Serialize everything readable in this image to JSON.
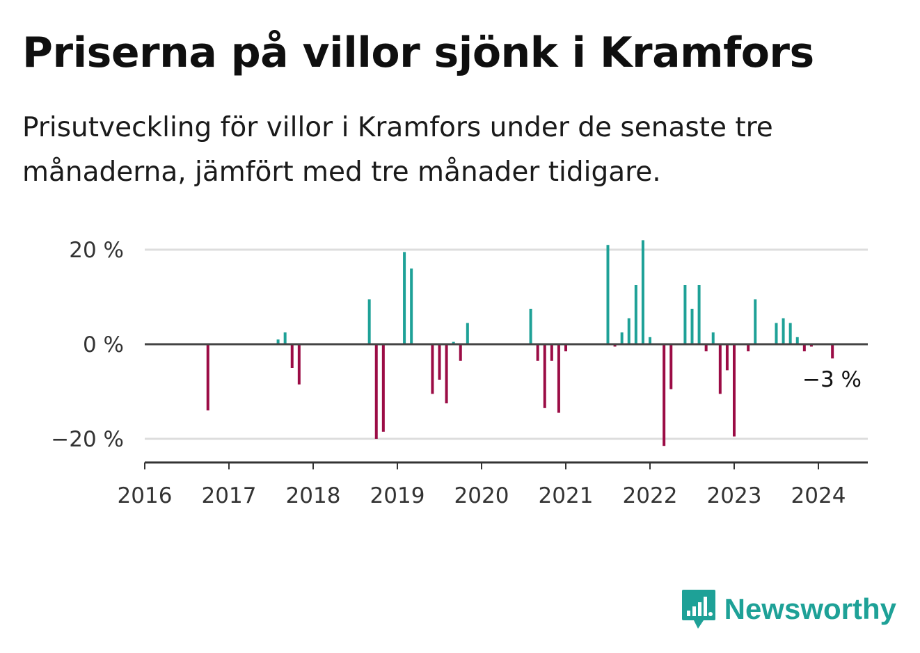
{
  "title": "Priserna på villor sjönk i Kramfors",
  "subtitle": "Prisutveckling för villor i Kramfors under de senaste tre månaderna, jämfört med tre månader tidigare.",
  "brand": {
    "name": "Newsworthy",
    "icon": "bar-chart-speech-bubble-icon",
    "color": "#1ea197"
  },
  "colors": {
    "positive": "#1ea197",
    "negative": "#9b0c45",
    "zero_line": "#444444",
    "grid": "#dddddd"
  },
  "chart_data": {
    "type": "bar",
    "title": "Priserna på villor sjönk i Kramfors",
    "xlabel": "",
    "ylabel": "",
    "x_ticks": [
      "2016",
      "2017",
      "2018",
      "2019",
      "2020",
      "2021",
      "2022",
      "2023",
      "2024"
    ],
    "y_ticks": [
      {
        "value": 20,
        "label": "20 %"
      },
      {
        "value": 0,
        "label": "0 %"
      },
      {
        "value": -20,
        "label": "−20 %"
      }
    ],
    "ylim": [
      -25,
      22
    ],
    "xlim": [
      "2016-01",
      "2024-07"
    ],
    "grid": true,
    "last_value_label": "−3 %",
    "series": [
      {
        "values": [
          {
            "x": "2016-10",
            "y": -14
          },
          {
            "x": "2017-08",
            "y": 1
          },
          {
            "x": "2017-09",
            "y": 2.5
          },
          {
            "x": "2017-10",
            "y": -5
          },
          {
            "x": "2017-11",
            "y": -8.5
          },
          {
            "x": "2018-09",
            "y": 9.5
          },
          {
            "x": "2018-10",
            "y": -20
          },
          {
            "x": "2018-11",
            "y": -18.5
          },
          {
            "x": "2019-02",
            "y": 19.5
          },
          {
            "x": "2019-03",
            "y": 16
          },
          {
            "x": "2019-06",
            "y": -10.5
          },
          {
            "x": "2019-07",
            "y": -7.5
          },
          {
            "x": "2019-08",
            "y": -12.5
          },
          {
            "x": "2019-09",
            "y": 0.5
          },
          {
            "x": "2019-10",
            "y": -3.5
          },
          {
            "x": "2019-11",
            "y": 4.5
          },
          {
            "x": "2020-08",
            "y": 7.5
          },
          {
            "x": "2020-09",
            "y": -3.5
          },
          {
            "x": "2020-10",
            "y": -13.5
          },
          {
            "x": "2020-11",
            "y": -3.5
          },
          {
            "x": "2020-12",
            "y": -14.5
          },
          {
            "x": "2021-01",
            "y": -1.5
          },
          {
            "x": "2021-07",
            "y": 21
          },
          {
            "x": "2021-08",
            "y": -0.5
          },
          {
            "x": "2021-09",
            "y": 2.5
          },
          {
            "x": "2021-10",
            "y": 5.5
          },
          {
            "x": "2021-11",
            "y": 12.5
          },
          {
            "x": "2021-12",
            "y": 22
          },
          {
            "x": "2022-01",
            "y": 1.5
          },
          {
            "x": "2022-03",
            "y": -21.5
          },
          {
            "x": "2022-04",
            "y": -9.5
          },
          {
            "x": "2022-06",
            "y": 12.5
          },
          {
            "x": "2022-07",
            "y": 7.5
          },
          {
            "x": "2022-08",
            "y": 12.5
          },
          {
            "x": "2022-09",
            "y": -1.5
          },
          {
            "x": "2022-10",
            "y": 2.5
          },
          {
            "x": "2022-11",
            "y": -10.5
          },
          {
            "x": "2022-12",
            "y": -5.5
          },
          {
            "x": "2023-01",
            "y": -19.5
          },
          {
            "x": "2023-03",
            "y": -1.5
          },
          {
            "x": "2023-04",
            "y": 9.5
          },
          {
            "x": "2023-07",
            "y": 4.5
          },
          {
            "x": "2023-08",
            "y": 5.5
          },
          {
            "x": "2023-09",
            "y": 4.5
          },
          {
            "x": "2023-10",
            "y": 1.5
          },
          {
            "x": "2023-11",
            "y": -1.5
          },
          {
            "x": "2023-12",
            "y": -0.5
          },
          {
            "x": "2024-03",
            "y": -3
          }
        ]
      }
    ]
  }
}
